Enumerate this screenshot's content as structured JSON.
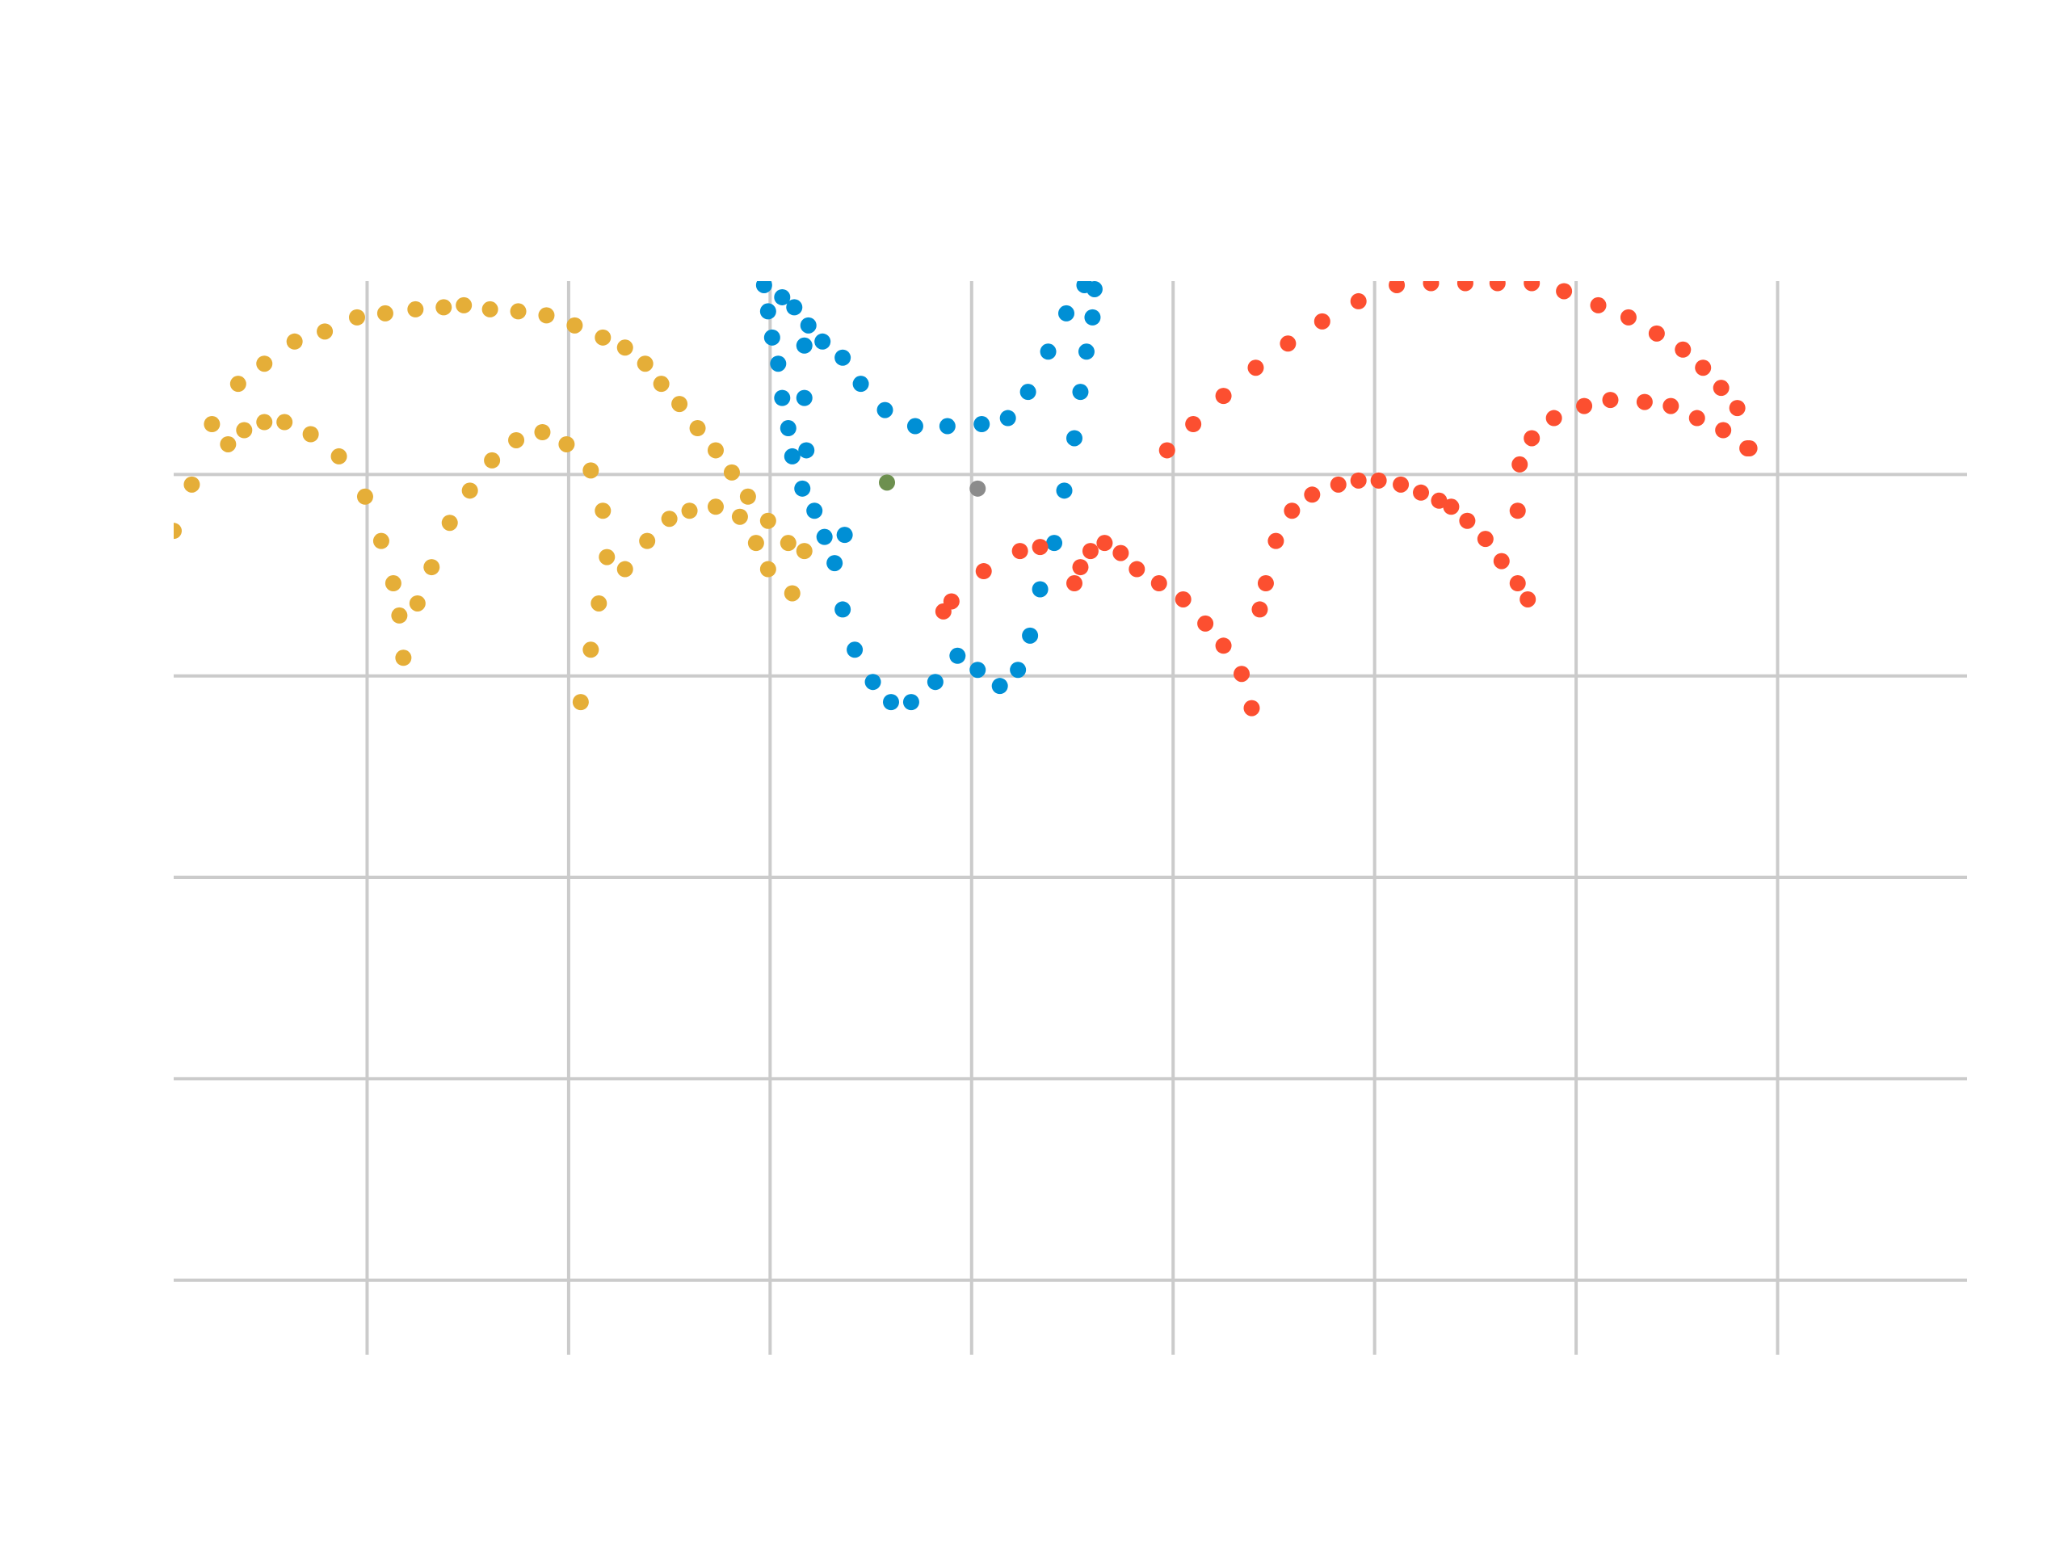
{
  "chart_data": {
    "type": "scatter",
    "xlim": [
      -3.96,
      4.94
    ],
    "ylim": [
      -4.37,
      0.96
    ],
    "xticks": [
      -3,
      -2,
      -1,
      0,
      1,
      2,
      3,
      4
    ],
    "yticks": [
      -4,
      -3,
      -2,
      -1,
      0
    ],
    "grid": true,
    "series": [
      {
        "color": "#e5ae38",
        "x": [
          -3.96,
          -3.87,
          -3.77,
          -3.64,
          -3.51,
          -3.36,
          -3.21,
          -3.05,
          -2.91,
          -2.76,
          -2.62,
          -2.52,
          -2.39,
          -2.25,
          -2.11,
          -1.97,
          -1.83,
          -1.72,
          -1.62,
          -1.54,
          -1.45,
          -1.36,
          -1.27,
          -1.19,
          -1.11,
          -1.01,
          -0.91,
          -0.83,
          -3.69,
          -3.61,
          -3.51,
          -3.41,
          -3.28,
          -3.14,
          -3.01,
          -2.93,
          -2.87,
          -2.84,
          -2.82,
          -2.75,
          -2.68,
          -2.59,
          -2.49,
          -2.38,
          -2.26,
          -2.13,
          -2.01,
          -1.89,
          -1.83,
          -1.81,
          -1.85,
          -1.89,
          -1.94,
          -1.72,
          -1.61,
          -1.5,
          -1.4,
          -1.27,
          -1.15,
          -1.07,
          -1.01,
          -0.89
        ],
        "values": [
          -0.28,
          -0.05,
          0.25,
          0.45,
          0.55,
          0.66,
          0.71,
          0.78,
          0.8,
          0.82,
          0.83,
          0.84,
          0.82,
          0.81,
          0.79,
          0.74,
          0.68,
          0.63,
          0.55,
          0.45,
          0.35,
          0.23,
          0.12,
          0.01,
          -0.11,
          -0.23,
          -0.34,
          -0.38,
          0.15,
          0.22,
          0.26,
          0.26,
          0.2,
          0.09,
          -0.11,
          -0.33,
          -0.54,
          -0.7,
          -0.91,
          -0.64,
          -0.46,
          -0.24,
          -0.08,
          0.07,
          0.17,
          0.21,
          0.15,
          0.02,
          -0.18,
          -0.41,
          -0.64,
          -0.87,
          -1.13,
          -0.47,
          -0.33,
          -0.22,
          -0.18,
          -0.16,
          -0.21,
          -0.34,
          -0.47,
          -0.59
        ]
      },
      {
        "color": "#008fd5",
        "x": [
          -1.03,
          -1.01,
          -0.99,
          -0.96,
          -0.94,
          -0.91,
          -0.89,
          -0.84,
          -0.78,
          -0.73,
          -0.68,
          -0.64,
          -0.58,
          -0.49,
          -0.4,
          -0.3,
          -0.18,
          -0.07,
          0.03,
          0.14,
          0.23,
          0.29,
          0.34,
          0.41,
          0.46,
          0.51,
          0.54,
          0.57,
          0.6,
          0.61,
          -0.94,
          -0.88,
          -0.81,
          -0.74,
          -0.64,
          -0.55,
          -0.43,
          -0.28,
          -0.12,
          0.05,
          0.18,
          0.28,
          0.38,
          0.47,
          0.56,
          -0.83,
          -0.83,
          -0.82,
          -0.63
        ],
        "values": [
          0.94,
          0.81,
          0.68,
          0.55,
          0.38,
          0.23,
          0.09,
          -0.07,
          -0.18,
          -0.31,
          -0.44,
          -0.67,
          -0.87,
          -1.03,
          -1.13,
          -1.13,
          -1.03,
          -0.9,
          -0.97,
          -1.05,
          -0.97,
          -0.8,
          -0.57,
          -0.34,
          -0.08,
          0.18,
          0.41,
          0.61,
          0.78,
          0.92,
          0.88,
          0.83,
          0.74,
          0.66,
          0.58,
          0.45,
          0.32,
          0.24,
          0.24,
          0.25,
          0.28,
          0.41,
          0.61,
          0.8,
          0.94,
          0.64,
          0.38,
          0.12,
          -0.3
        ]
      },
      {
        "color": "#fc4f30",
        "x": [
          0.97,
          1.1,
          1.25,
          1.41,
          1.57,
          1.74,
          1.92,
          2.11,
          2.28,
          2.45,
          2.61,
          2.78,
          2.94,
          3.11,
          3.26,
          3.4,
          3.53,
          3.63,
          3.72,
          3.8,
          3.86,
          -0.14,
          -0.1,
          0.06,
          0.24,
          0.34,
          0.51,
          0.54,
          0.59,
          0.66,
          0.74,
          0.82,
          0.93,
          1.05,
          1.16,
          1.25,
          1.34,
          1.39,
          1.43,
          1.46,
          1.51,
          1.59,
          1.69,
          1.82,
          1.92,
          2.02,
          2.13,
          2.23,
          2.32,
          2.38,
          2.46,
          2.55,
          2.63,
          2.71,
          2.76,
          2.71,
          2.72,
          2.78,
          2.89,
          3.04,
          3.17,
          3.34,
          3.47,
          3.6,
          3.73,
          3.85
        ],
        "values": [
          0.12,
          0.25,
          0.39,
          0.53,
          0.65,
          0.76,
          0.86,
          0.94,
          0.95,
          0.95,
          0.95,
          0.95,
          0.91,
          0.84,
          0.78,
          0.7,
          0.62,
          0.53,
          0.43,
          0.33,
          0.13,
          -0.68,
          -0.63,
          -0.48,
          -0.38,
          -0.36,
          -0.54,
          -0.46,
          -0.38,
          -0.34,
          -0.39,
          -0.47,
          -0.54,
          -0.62,
          -0.74,
          -0.85,
          -0.99,
          -1.16,
          -0.67,
          -0.54,
          -0.33,
          -0.18,
          -0.1,
          -0.05,
          -0.03,
          -0.03,
          -0.05,
          -0.09,
          -0.13,
          -0.16,
          -0.23,
          -0.32,
          -0.43,
          -0.54,
          -0.62,
          -0.18,
          0.05,
          0.18,
          0.28,
          0.34,
          0.37,
          0.36,
          0.34,
          0.28,
          0.22,
          0.13
        ]
      },
      {
        "color": "#6d904f",
        "x": [
          -0.42
        ],
        "values": [
          -0.04
        ]
      },
      {
        "color": "#8b8b8b",
        "x": [
          0.03
        ],
        "values": [
          -0.07
        ]
      }
    ]
  }
}
